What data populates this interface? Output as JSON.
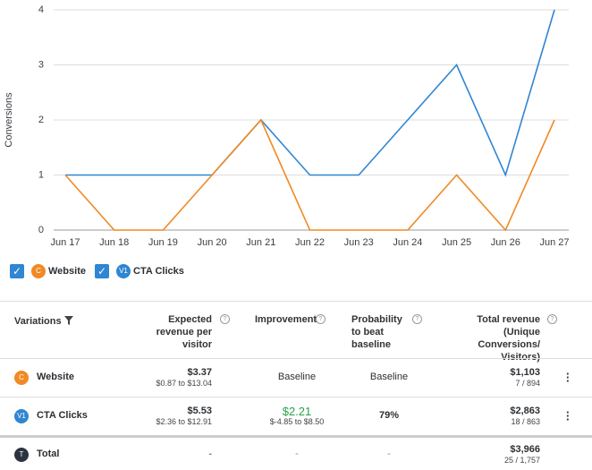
{
  "chart_data": {
    "type": "line",
    "y_label": "Conversions",
    "categories": [
      "Jun 17",
      "Jun 18",
      "Jun 19",
      "Jun 20",
      "Jun 21",
      "Jun 22",
      "Jun 23",
      "Jun 24",
      "Jun 25",
      "Jun 26",
      "Jun 27"
    ],
    "series": [
      {
        "name": "Website",
        "badge": "C",
        "color": "#f08a24",
        "values": [
          1,
          0,
          0,
          1,
          2,
          0,
          0,
          0,
          1,
          0,
          2
        ]
      },
      {
        "name": "CTA Clicks",
        "badge": "V1",
        "color": "#2f86d2",
        "values": [
          1,
          1,
          1,
          1,
          2,
          1,
          1,
          2,
          3,
          1,
          4
        ]
      }
    ],
    "ylim": [
      0,
      4
    ],
    "yticks": [
      0,
      1,
      2,
      3,
      4
    ],
    "grid": true
  },
  "table": {
    "header": [
      "Variations",
      "Expected revenue per visitor",
      "Improvement",
      "Probability to beat baseline",
      "Total revenue (Unique Conversions/ Visitors)"
    ],
    "rows": [
      {
        "badge": "C",
        "color": "#f08a24",
        "name": "Website",
        "revenue": "$3.37",
        "revenue_range": "$0.87 to $13.04",
        "improvement": "Baseline",
        "probability": "Baseline",
        "total": "$1,103",
        "total_detail": "7 / 894"
      },
      {
        "badge": "V1",
        "color": "#2f86d2",
        "name": "CTA Clicks",
        "revenue": "$5.53",
        "revenue_range": "$2.36 to $12.91",
        "improvement": "$2.21",
        "improvement_range": "$-4.85 to $8.50",
        "probability": "79%",
        "total": "$2,863",
        "total_detail": "18 / 863"
      },
      {
        "badge": "T",
        "color": "#2b3440",
        "name": "Total",
        "revenue": "-",
        "improvement": "-",
        "probability": "-",
        "total": "$3,966",
        "total_detail": "25 / 1,757"
      }
    ]
  }
}
